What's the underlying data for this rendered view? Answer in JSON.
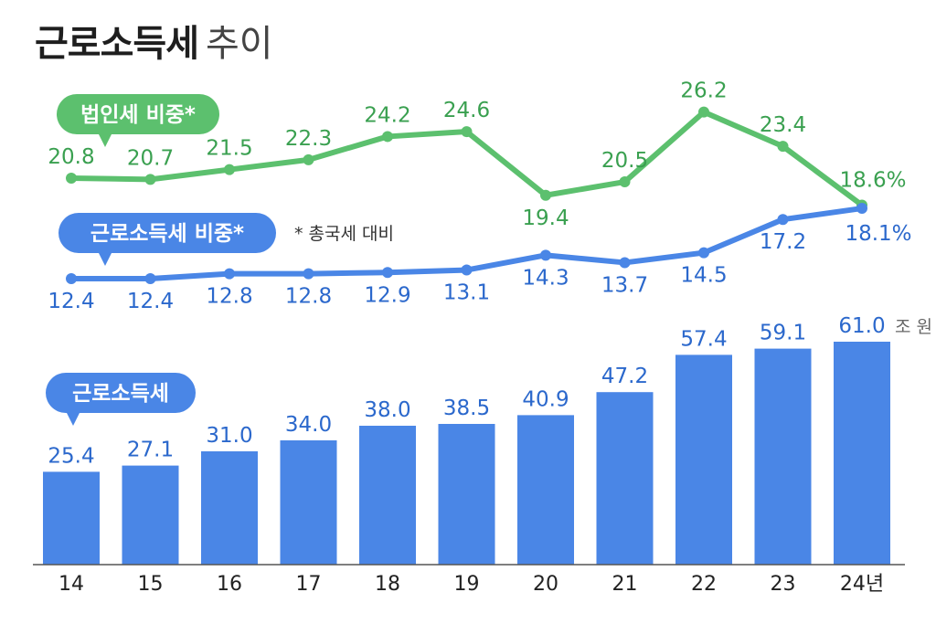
{
  "title": {
    "main": "근로소득세",
    "sub": "추이"
  },
  "chart_data": {
    "type": "bar+line",
    "categories": [
      "14",
      "15",
      "16",
      "17",
      "18",
      "19",
      "20",
      "21",
      "22",
      "23",
      "24년"
    ],
    "bar_series": {
      "name": "근로소득세",
      "values": [
        25.4,
        27.1,
        31.0,
        34.0,
        38.0,
        38.5,
        40.9,
        47.2,
        57.4,
        59.1,
        61.0
      ],
      "labels": [
        "25.4",
        "27.1",
        "31.0",
        "34.0",
        "38.0",
        "38.5",
        "40.9",
        "47.2",
        "57.4",
        "59.1",
        "61.0"
      ],
      "unit": "조 원",
      "color": "#4a86e6"
    },
    "line_series": [
      {
        "name": "법인세 비중*",
        "values": [
          20.8,
          20.7,
          21.5,
          22.3,
          24.2,
          24.6,
          19.4,
          20.5,
          26.2,
          23.4,
          18.6
        ],
        "labels": [
          "20.8",
          "20.7",
          "21.5",
          "22.3",
          "24.2",
          "24.6",
          "19.4",
          "20.5",
          "26.2",
          "23.4",
          "18.6%"
        ],
        "color": "#5cc06e",
        "label_color": "#3aa050"
      },
      {
        "name": "근로소득세 비중*",
        "values": [
          12.4,
          12.4,
          12.8,
          12.8,
          12.9,
          13.1,
          14.3,
          13.7,
          14.5,
          17.2,
          18.1
        ],
        "labels": [
          "12.4",
          "12.4",
          "12.8",
          "12.8",
          "12.9",
          "13.1",
          "14.3",
          "13.7",
          "14.5",
          "17.2",
          "18.1%"
        ],
        "color": "#4a86e6",
        "label_color": "#2b68cc"
      }
    ],
    "footnote": "* 총국세 대비"
  }
}
